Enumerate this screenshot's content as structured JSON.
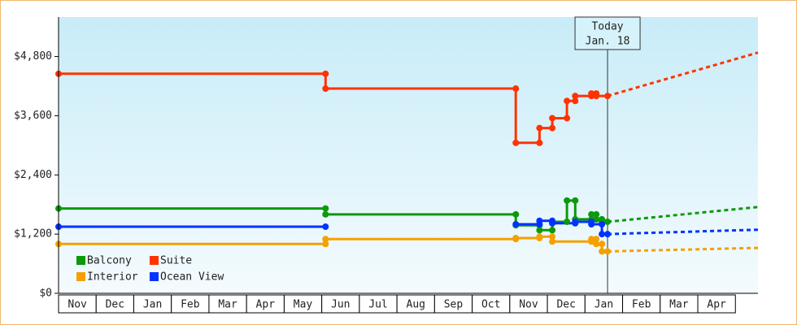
{
  "chart_data": {
    "type": "line",
    "categories": [
      "Nov",
      "Dec",
      "Jan",
      "Feb",
      "Mar",
      "Apr",
      "May",
      "Jun",
      "Jul",
      "Aug",
      "Sep",
      "Oct",
      "Nov",
      "Dec",
      "Jan",
      "Feb",
      "Mar",
      "Apr"
    ],
    "xlim": [
      0,
      18.6
    ],
    "ylim": [
      0,
      5600
    ],
    "yticks": [
      {
        "value": 0,
        "label": "$0"
      },
      {
        "value": 1200,
        "label": "$1,200"
      },
      {
        "value": 2400,
        "label": "$2,400"
      },
      {
        "value": 3600,
        "label": "$3,600"
      },
      {
        "value": 4800,
        "label": "$4,800"
      }
    ],
    "today": {
      "label": "Today",
      "date": "Jan. 18",
      "x": 14.6
    },
    "legend": "lower left",
    "series": [
      {
        "name": "Balcony",
        "color": "#0a9a0a",
        "x": [
          0,
          7.1,
          7.1,
          12.16,
          12.16,
          12.79,
          12.79,
          13.13,
          13.13,
          13.52,
          13.52,
          13.74,
          13.74,
          14.17,
          14.17,
          14.3,
          14.3,
          14.45,
          14.45,
          14.6
        ],
        "values": [
          1720,
          1720,
          1600,
          1600,
          1380,
          1380,
          1280,
          1280,
          1450,
          1450,
          1880,
          1880,
          1500,
          1500,
          1600,
          1600,
          1500,
          1500,
          1450,
          1450
        ],
        "forecast": {
          "x": [
            14.6,
            18.6
          ],
          "values": [
            1450,
            1750
          ]
        }
      },
      {
        "name": "Suite",
        "color": "#ff3300",
        "x": [
          0,
          7.1,
          7.1,
          12.16,
          12.16,
          12.79,
          12.79,
          13.13,
          13.13,
          13.52,
          13.52,
          13.74,
          13.74,
          14.17,
          14.17,
          14.3,
          14.3,
          14.6
        ],
        "values": [
          4450,
          4450,
          4150,
          4150,
          3050,
          3050,
          3350,
          3350,
          3550,
          3550,
          3900,
          3900,
          4000,
          4000,
          4050,
          4050,
          4000,
          4000
        ],
        "forecast": {
          "x": [
            14.6,
            18.6
          ],
          "values": [
            4000,
            4880
          ]
        }
      },
      {
        "name": "Interior",
        "color": "#f5a000",
        "x": [
          0,
          7.1,
          7.1,
          12.16,
          12.16,
          12.79,
          12.79,
          13.13,
          13.13,
          14.17,
          14.17,
          14.3,
          14.3,
          14.45,
          14.45,
          14.6
        ],
        "values": [
          1000,
          1000,
          1100,
          1100,
          1120,
          1120,
          1150,
          1150,
          1050,
          1050,
          1100,
          1100,
          1000,
          1000,
          850,
          850
        ],
        "forecast": {
          "x": [
            14.6,
            18.6
          ],
          "values": [
            850,
            920
          ]
        }
      },
      {
        "name": "Ocean View",
        "color": "#0033ff",
        "x": [
          0,
          7.1,
          9.6,
          12.16,
          12.79,
          12.79,
          13.13,
          13.13,
          13.74,
          13.74,
          14.17,
          14.17,
          14.45,
          14.45,
          14.6
        ],
        "values": [
          1350,
          1350,
          null,
          1400,
          1400,
          1470,
          1470,
          1420,
          1420,
          1450,
          1450,
          1400,
          1400,
          1200,
          1200
        ],
        "forecast": {
          "x": [
            14.6,
            18.6
          ],
          "values": [
            1200,
            1290
          ]
        }
      }
    ]
  }
}
